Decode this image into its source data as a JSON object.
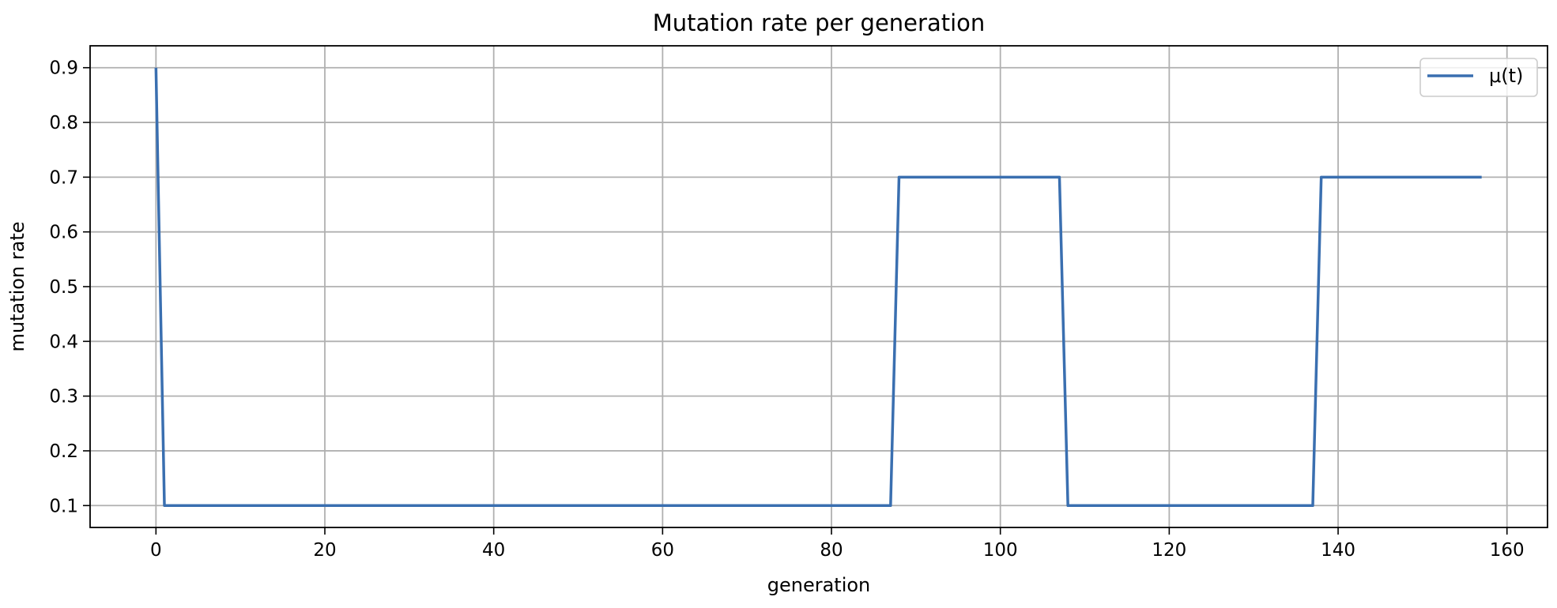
{
  "chart_data": {
    "type": "line",
    "title": "Mutation rate per generation",
    "xlabel": "generation",
    "ylabel": "mutation rate",
    "xlim": [
      -7.8,
      164.8
    ],
    "ylim": [
      0.06,
      0.94
    ],
    "xticks": [
      0,
      20,
      40,
      60,
      80,
      100,
      120,
      140,
      160
    ],
    "yticks": [
      0.1,
      0.2,
      0.3,
      0.4,
      0.5,
      0.6,
      0.7,
      0.8,
      0.9
    ],
    "xtick_labels": [
      "0",
      "20",
      "40",
      "60",
      "80",
      "100",
      "120",
      "140",
      "160"
    ],
    "ytick_labels": [
      "0.1",
      "0.2",
      "0.3",
      "0.4",
      "0.5",
      "0.6",
      "0.7",
      "0.8",
      "0.9"
    ],
    "grid": true,
    "legend_position": "top-right",
    "series": [
      {
        "name": "μ(t)",
        "color": "#3a6fb0",
        "points": [
          [
            0,
            0.9
          ],
          [
            1,
            0.1
          ],
          [
            87,
            0.1
          ],
          [
            88,
            0.7
          ],
          [
            107,
            0.7
          ],
          [
            108,
            0.1
          ],
          [
            137,
            0.1
          ],
          [
            138,
            0.7
          ],
          [
            157,
            0.7
          ]
        ]
      }
    ]
  }
}
